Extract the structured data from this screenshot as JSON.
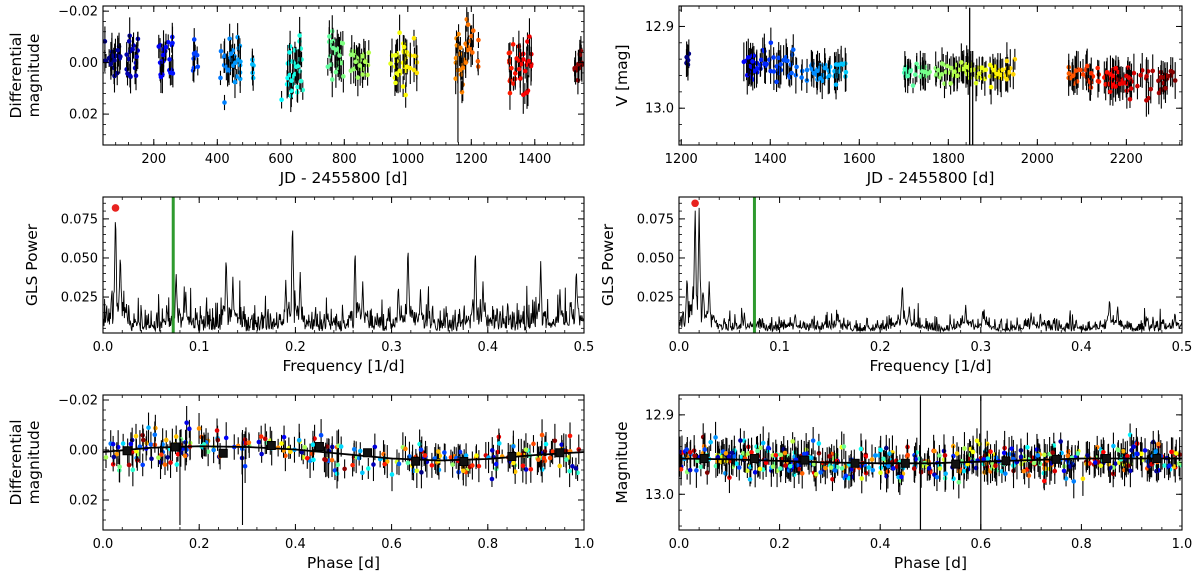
{
  "chart_data": [
    {
      "id": "p1",
      "type": "scatter",
      "xlabel": "JD - 2455800 [d]",
      "ylabel_lines": [
        "Differential",
        "magnitude"
      ],
      "xlim": [
        40,
        1555
      ],
      "ylim": [
        0.032,
        -0.022
      ],
      "y_inverted": true,
      "xticks": [
        200,
        400,
        600,
        800,
        1000,
        1200,
        1400
      ],
      "xticklabels": [
        "200",
        "400",
        "600",
        "800",
        "1000",
        "1200",
        "1400"
      ],
      "yticks": [
        -0.02,
        0.0,
        0.02
      ],
      "yticklabels": [
        "−0.02",
        "0.00",
        "0.02"
      ],
      "colormap": "jet (colour by time)",
      "segments": [
        {
          "x": [
            45,
            95
          ],
          "y_center": 0.0,
          "y_spread": 0.006
        },
        {
          "x": [
            110,
            150
          ],
          "y_center": -0.001,
          "y_spread": 0.009
        },
        {
          "x": [
            215,
            265
          ],
          "y_center": 0.0,
          "y_spread": 0.01
        },
        {
          "x": [
            320,
            340
          ],
          "y_center": -0.002,
          "y_spread": 0.006
        },
        {
          "x": [
            410,
            475
          ],
          "y_center": 0.001,
          "y_spread": 0.01
        },
        {
          "x": [
            505,
            515
          ],
          "y_center": 0.0,
          "y_spread": 0.005
        },
        {
          "x": [
            600,
            670
          ],
          "y_center": 0.001,
          "y_spread": 0.012
        },
        {
          "x": [
            745,
            800
          ],
          "y_center": -0.002,
          "y_spread": 0.01
        },
        {
          "x": [
            820,
            880
          ],
          "y_center": 0.0,
          "y_spread": 0.007
        },
        {
          "x": [
            945,
            1030
          ],
          "y_center": 0.0,
          "y_spread": 0.009
        },
        {
          "x": [
            1150,
            1225
          ],
          "y_center": -0.002,
          "y_spread": 0.011
        },
        {
          "x": [
            1315,
            1395
          ],
          "y_center": 0.001,
          "y_spread": 0.009
        },
        {
          "x": [
            1520,
            1550
          ],
          "y_center": 0.002,
          "y_spread": 0.007
        }
      ]
    },
    {
      "id": "p2",
      "type": "scatter",
      "xlabel": "JD - 2455800 [d]",
      "ylabel": "V [mag]",
      "xlim": [
        1195,
        2325
      ],
      "ylim": [
        13.045,
        12.875
      ],
      "y_inverted": true,
      "xticks": [
        1200,
        1400,
        1600,
        1800,
        2000,
        2200
      ],
      "xticklabels": [
        "1200",
        "1400",
        "1600",
        "1800",
        "2000",
        "2200"
      ],
      "yticks": [
        12.9,
        13.0
      ],
      "yticklabels": [
        "12.9",
        "13.0"
      ],
      "colormap": "jet (colour by time)",
      "segments": [
        {
          "x": [
            1210,
            1218
          ],
          "y_center": 12.945,
          "y_spread": 0.008
        },
        {
          "x": [
            1340,
            1460
          ],
          "y_center": 12.948,
          "y_spread": 0.018
        },
        {
          "x": [
            1470,
            1570
          ],
          "y_center": 12.955,
          "y_spread": 0.012
        },
        {
          "x": [
            1700,
            1760
          ],
          "y_center": 12.955,
          "y_spread": 0.01
        },
        {
          "x": [
            1770,
            1950
          ],
          "y_center": 12.955,
          "y_spread": 0.014
        },
        {
          "x": [
            2070,
            2140
          ],
          "y_center": 12.962,
          "y_spread": 0.014
        },
        {
          "x": [
            2150,
            2310
          ],
          "y_center": 12.965,
          "y_spread": 0.016
        }
      ]
    },
    {
      "id": "p3",
      "type": "line",
      "xlabel": "Frequency [1/d]",
      "ylabel": "GLS Power",
      "xlim": [
        0.0,
        0.5
      ],
      "ylim": [
        0.002,
        0.089
      ],
      "xticks": [
        0.0,
        0.1,
        0.2,
        0.3,
        0.4,
        0.5
      ],
      "xticklabels": [
        "0.0",
        "0.1",
        "0.2",
        "0.3",
        "0.4",
        "0.5"
      ],
      "yticks": [
        0.025,
        0.05,
        0.075
      ],
      "yticklabels": [
        "0.025",
        "0.050",
        "0.075"
      ],
      "vline": {
        "x": 0.073,
        "color": "#2e9a2e"
      },
      "max_marker": {
        "x": 0.013,
        "y": 0.082,
        "color": "#e8231f"
      },
      "peaks": [
        {
          "f": 0.013,
          "p": 0.082
        },
        {
          "f": 0.018,
          "p": 0.055
        },
        {
          "f": 0.076,
          "p": 0.042
        },
        {
          "f": 0.086,
          "p": 0.03
        },
        {
          "f": 0.128,
          "p": 0.053
        },
        {
          "f": 0.135,
          "p": 0.038
        },
        {
          "f": 0.19,
          "p": 0.036
        },
        {
          "f": 0.197,
          "p": 0.076
        },
        {
          "f": 0.205,
          "p": 0.041
        },
        {
          "f": 0.262,
          "p": 0.058
        },
        {
          "f": 0.27,
          "p": 0.035
        },
        {
          "f": 0.307,
          "p": 0.034
        },
        {
          "f": 0.317,
          "p": 0.06
        },
        {
          "f": 0.33,
          "p": 0.03
        },
        {
          "f": 0.387,
          "p": 0.058
        },
        {
          "f": 0.395,
          "p": 0.035
        },
        {
          "f": 0.455,
          "p": 0.048
        },
        {
          "f": 0.475,
          "p": 0.03
        },
        {
          "f": 0.492,
          "p": 0.045
        }
      ]
    },
    {
      "id": "p4",
      "type": "line",
      "xlabel": "Frequency [1/d]",
      "ylabel": "GLS Power",
      "xlim": [
        0.0,
        0.5
      ],
      "ylim": [
        0.002,
        0.089
      ],
      "xticks": [
        0.0,
        0.1,
        0.2,
        0.3,
        0.4,
        0.5
      ],
      "xticklabels": [
        "0.0",
        "0.1",
        "0.2",
        "0.3",
        "0.4",
        "0.5"
      ],
      "yticks": [
        0.025,
        0.05,
        0.075
      ],
      "yticklabels": [
        "0.025",
        "0.050",
        "0.075"
      ],
      "vline": {
        "x": 0.075,
        "color": "#2e9a2e"
      },
      "max_marker": {
        "x": 0.016,
        "y": 0.085,
        "color": "#e8231f"
      },
      "peaks": [
        {
          "f": 0.016,
          "p": 0.085
        },
        {
          "f": 0.02,
          "p": 0.082
        },
        {
          "f": 0.008,
          "p": 0.04
        },
        {
          "f": 0.03,
          "p": 0.035
        },
        {
          "f": 0.065,
          "p": 0.015
        },
        {
          "f": 0.115,
          "p": 0.012
        },
        {
          "f": 0.158,
          "p": 0.016
        },
        {
          "f": 0.222,
          "p": 0.035
        },
        {
          "f": 0.229,
          "p": 0.02
        },
        {
          "f": 0.285,
          "p": 0.02
        },
        {
          "f": 0.302,
          "p": 0.018
        },
        {
          "f": 0.35,
          "p": 0.015
        },
        {
          "f": 0.428,
          "p": 0.025
        },
        {
          "f": 0.436,
          "p": 0.02
        },
        {
          "f": 0.493,
          "p": 0.016
        }
      ]
    },
    {
      "id": "p5",
      "type": "scatter",
      "xlabel": "Phase [d]",
      "ylabel_lines": [
        "Differential",
        "magnitude"
      ],
      "xlim": [
        0.0,
        1.0
      ],
      "ylim": [
        0.032,
        -0.022
      ],
      "y_inverted": true,
      "xticks": [
        0.0,
        0.2,
        0.4,
        0.6,
        0.8,
        1.0
      ],
      "xticklabels": [
        "0.0",
        "0.2",
        "0.4",
        "0.6",
        "0.8",
        "1.0"
      ],
      "yticks": [
        -0.02,
        0.0,
        0.02
      ],
      "yticklabels": [
        "−0.02",
        "0.00",
        "0.02"
      ],
      "binned": {
        "x": [
          0.05,
          0.15,
          0.25,
          0.35,
          0.45,
          0.55,
          0.65,
          0.75,
          0.85,
          0.95
        ],
        "y": [
          0.0003,
          -0.0012,
          0.0013,
          -0.0018,
          -0.0014,
          0.0011,
          0.0045,
          0.0046,
          0.0026,
          0.0011
        ]
      },
      "fit": {
        "x": [
          0.0,
          0.1,
          0.2,
          0.3,
          0.4,
          0.5,
          0.6,
          0.7,
          0.8,
          0.9,
          1.0
        ],
        "y": [
          0.0008,
          -0.0009,
          -0.0015,
          -0.0012,
          -0.0002,
          0.0016,
          0.0034,
          0.0042,
          0.0036,
          0.002,
          0.0008
        ]
      }
    },
    {
      "id": "p6",
      "type": "scatter",
      "xlabel": "Phase [d]",
      "ylabel": "Magnitude",
      "xlim": [
        0.0,
        1.0
      ],
      "ylim": [
        13.045,
        12.875
      ],
      "y_inverted": true,
      "xticks": [
        0.0,
        0.2,
        0.4,
        0.6,
        0.8,
        1.0
      ],
      "xticklabels": [
        "0.0",
        "0.2",
        "0.4",
        "0.6",
        "0.8",
        "1.0"
      ],
      "yticks": [
        12.9,
        13.0
      ],
      "yticklabels": [
        "12.9",
        "13.0"
      ],
      "binned": {
        "x": [
          0.05,
          0.15,
          0.25,
          0.35,
          0.45,
          0.55,
          0.65,
          0.75,
          0.85,
          0.95
        ],
        "y": [
          12.955,
          12.955,
          12.957,
          12.961,
          12.961,
          12.962,
          12.958,
          12.956,
          12.955,
          12.955
        ]
      },
      "fit": {
        "x": [
          0.0,
          0.1,
          0.2,
          0.3,
          0.4,
          0.5,
          0.6,
          0.7,
          0.8,
          0.9,
          1.0
        ],
        "y": [
          12.955,
          12.956,
          12.958,
          12.96,
          12.961,
          12.961,
          12.959,
          12.957,
          12.955,
          12.955,
          12.955
        ]
      }
    }
  ]
}
